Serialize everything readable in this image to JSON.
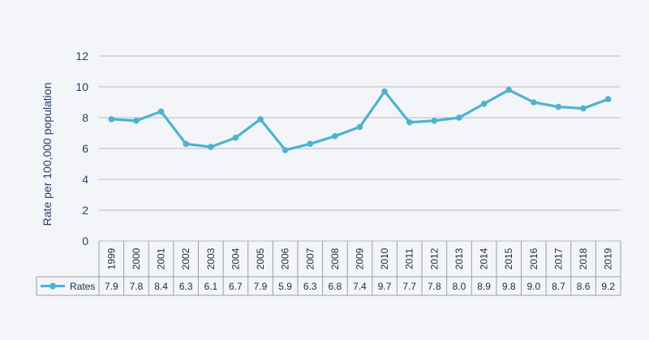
{
  "chart_data": {
    "type": "line",
    "title": "",
    "xlabel": "",
    "ylabel": "Rate per 100,000 population",
    "ylim": [
      0,
      12
    ],
    "yticks": [
      0,
      2,
      4,
      6,
      8,
      10,
      12
    ],
    "grid": true,
    "categories": [
      "1999",
      "2000",
      "2001",
      "2002",
      "2003",
      "2004",
      "2005",
      "2006",
      "2007",
      "2008",
      "2009",
      "2010",
      "2011",
      "2012",
      "2013",
      "2014",
      "2015",
      "2016",
      "2017",
      "2018",
      "2019"
    ],
    "series": [
      {
        "name": "Rates",
        "values": [
          7.9,
          7.8,
          8.4,
          6.3,
          6.1,
          6.7,
          7.9,
          5.9,
          6.3,
          6.8,
          7.4,
          9.7,
          7.7,
          7.8,
          8.0,
          8.9,
          9.8,
          9.0,
          8.7,
          8.6,
          9.2
        ],
        "labels": [
          "7.9",
          "7.8",
          "8.4",
          "6.3",
          "6.1",
          "6.7",
          "7.9",
          "5.9",
          "6.3",
          "6.8",
          "7.4",
          "9.7",
          "7.7",
          "7.8",
          "8.0",
          "8.9",
          "9.8",
          "9.0",
          "8.7",
          "8.6",
          "9.2"
        ],
        "color": "#4db3cf"
      }
    ],
    "legend": "bottom-left in data table",
    "colors": {
      "background": "#f3f5f8",
      "grid": "#b9bcc2",
      "axis_text": "#2b3a6b",
      "table_border": "#9aa0a8"
    }
  }
}
